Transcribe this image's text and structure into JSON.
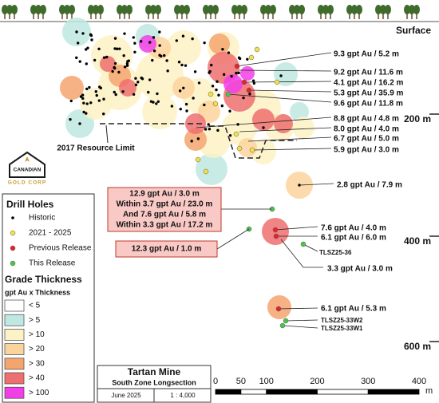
{
  "header": {
    "surface": "Surface"
  },
  "depth_labels": [
    "200 m",
    "400 m",
    "600 m"
  ],
  "resource_limit": "2017 Resource Limit",
  "logo": {
    "line1": "CANADIAN",
    "line2": "GOLD CORP"
  },
  "callouts": [
    "9.3 gpt Au / 5.2 m",
    "9.2 gpt Au / 11.6 m",
    "4.1 gpt Au / 16.2 m",
    "5.3 gpt Au / 35.9 m",
    "9.6 gpt Au / 11.8 m",
    "8.8 gpt Au / 4.8 m",
    "8.0 gpt Au / 4.0 m",
    "6.7 gpt Au / 5.0 m",
    "5.9 gpt Au / 3.0 m",
    "2.8 gpt Au / 7.9 m",
    "7.6 gpt Au / 4.0 m",
    "6.1 gpt Au / 6.0 m",
    "TLSZ25-36",
    "3.3 gpt Au / 3.0 m",
    "6.1 gpt Au / 5.3 m",
    "TLSZ25-33W2",
    "TLSZ25-33W1"
  ],
  "boxes": [
    [
      "12.9 gpt Au / 3.0 m",
      "Within 3.7 gpt Au / 23.0 m",
      "And 7.6 gpt Au / 5.8 m",
      "Within 3.3 gpt Au / 17.2 m"
    ],
    [
      "12.3 gpt Au / 1.0 m"
    ]
  ],
  "legend": {
    "drill_holes_title": "Drill Holes",
    "drill_holes": [
      {
        "label": "Historic",
        "color": "#000000"
      },
      {
        "label": "2021 - 2025",
        "color": "#f4e04a"
      },
      {
        "label": "Previous Release",
        "color": "#e4242a"
      },
      {
        "label": "This Release",
        "color": "#4cc44a"
      }
    ],
    "grade_title": "Grade Thickness",
    "grade_subtitle": "gpt Au x Thickness",
    "grades": [
      {
        "label": "< 5",
        "color": "#ffffff"
      },
      {
        "label": "> 5",
        "color": "#bfe8e2"
      },
      {
        "label": "> 10",
        "color": "#fdf2c6"
      },
      {
        "label": "> 20",
        "color": "#fbd49c"
      },
      {
        "label": "> 30",
        "color": "#f4a56e"
      },
      {
        "label": "> 40",
        "color": "#ee6f6f"
      },
      {
        "label": "> 100",
        "color": "#f23ee6"
      }
    ]
  },
  "title_block": {
    "title": "Tartan Mine",
    "subtitle": "South Zone Longsection",
    "date": "June 2025",
    "scale": "1 : 4,000"
  },
  "scale_bar": {
    "ticks": [
      0,
      50,
      100,
      200,
      300,
      400
    ],
    "unit": "m"
  }
}
